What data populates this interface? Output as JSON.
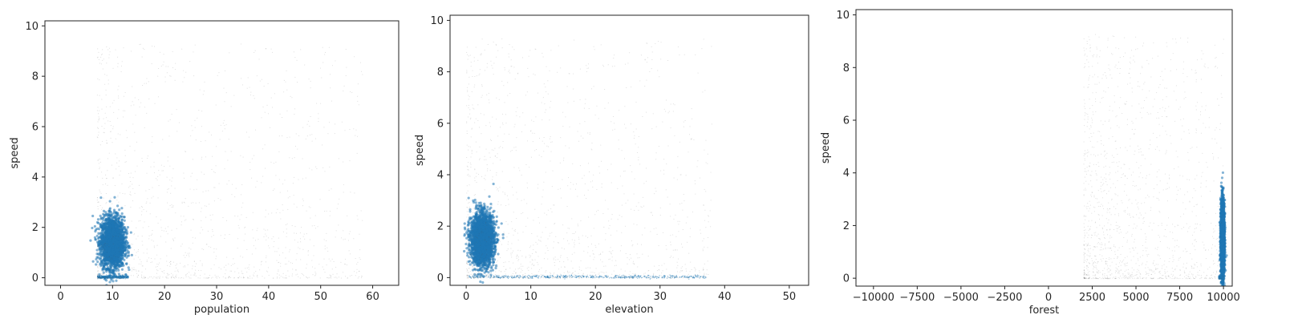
{
  "chart_data": [
    {
      "type": "scatter",
      "xlabel": "population",
      "ylabel": "speed",
      "xlim": [
        -3,
        65
      ],
      "ylim": [
        -0.3,
        10.2
      ],
      "xticks": [
        0,
        10,
        20,
        30,
        40,
        50,
        60
      ],
      "yticks": [
        0,
        2,
        4,
        6,
        8,
        10
      ],
      "xtick_labels": [
        "0",
        "10",
        "20",
        "30",
        "40",
        "50",
        "60"
      ],
      "ytick_labels": [
        "0",
        "2",
        "4",
        "6",
        "8",
        "10"
      ],
      "grid": false,
      "colors": {
        "dense": "#1f77b4",
        "sparse": "#555555"
      },
      "clusters": [
        {
          "kind": "dense",
          "x_center": 10,
          "x_spread": 2.5,
          "y_center": 1.4,
          "y_spread": 0.5
        },
        {
          "kind": "baseline",
          "x_range": [
            7,
            13
          ],
          "y": 0.05
        },
        {
          "kind": "sparse",
          "x_range": [
            7,
            58
          ],
          "y_range": [
            0,
            9.3
          ]
        }
      ]
    },
    {
      "type": "scatter",
      "xlabel": "elevation",
      "ylabel": "speed",
      "xlim": [
        -2.5,
        53
      ],
      "ylim": [
        -0.3,
        10.2
      ],
      "xticks": [
        0,
        10,
        20,
        30,
        40,
        50
      ],
      "yticks": [
        0,
        2,
        4,
        6,
        8,
        10
      ],
      "xtick_labels": [
        "0",
        "10",
        "20",
        "30",
        "40",
        "50"
      ],
      "ytick_labels": [
        "0",
        "2",
        "4",
        "6",
        "8",
        "10"
      ],
      "grid": false,
      "colors": {
        "dense": "#1f77b4",
        "sparse": "#555555"
      },
      "clusters": [
        {
          "kind": "dense",
          "x_center": 2.5,
          "x_spread": 2,
          "y_center": 1.5,
          "y_spread": 0.5
        },
        {
          "kind": "baseline",
          "x_range": [
            0,
            37
          ],
          "y": 0.05
        },
        {
          "kind": "sparse",
          "x_range": [
            0,
            38
          ],
          "y_range": [
            0,
            9.3
          ]
        }
      ]
    },
    {
      "type": "scatter",
      "xlabel": "forest",
      "ylabel": "speed",
      "xlim": [
        -11000,
        10500
      ],
      "ylim": [
        -0.3,
        10.2
      ],
      "xticks": [
        -10000,
        -7500,
        -5000,
        -2500,
        0,
        2500,
        5000,
        7500,
        10000
      ],
      "yticks": [
        0,
        2,
        4,
        6,
        8,
        10
      ],
      "xtick_labels": [
        "−10000",
        "−7500",
        "−5000",
        "−2500",
        "0",
        "2500",
        "5000",
        "7500",
        "10000"
      ],
      "ytick_labels": [
        "0",
        "2",
        "4",
        "6",
        "8",
        "10"
      ],
      "grid": false,
      "colors": {
        "dense": "#1f77b4",
        "sparse": "#555555"
      },
      "clusters": [
        {
          "kind": "dense",
          "x_center": 9950,
          "x_spread": 120,
          "y_center": 1.5,
          "y_spread": 0.7
        },
        {
          "kind": "baseline",
          "x_range": [
            9700,
            10000
          ],
          "y": 0.05
        },
        {
          "kind": "sparse",
          "x_range": [
            2000,
            10000
          ],
          "y_range": [
            0,
            9.3
          ]
        }
      ]
    }
  ]
}
